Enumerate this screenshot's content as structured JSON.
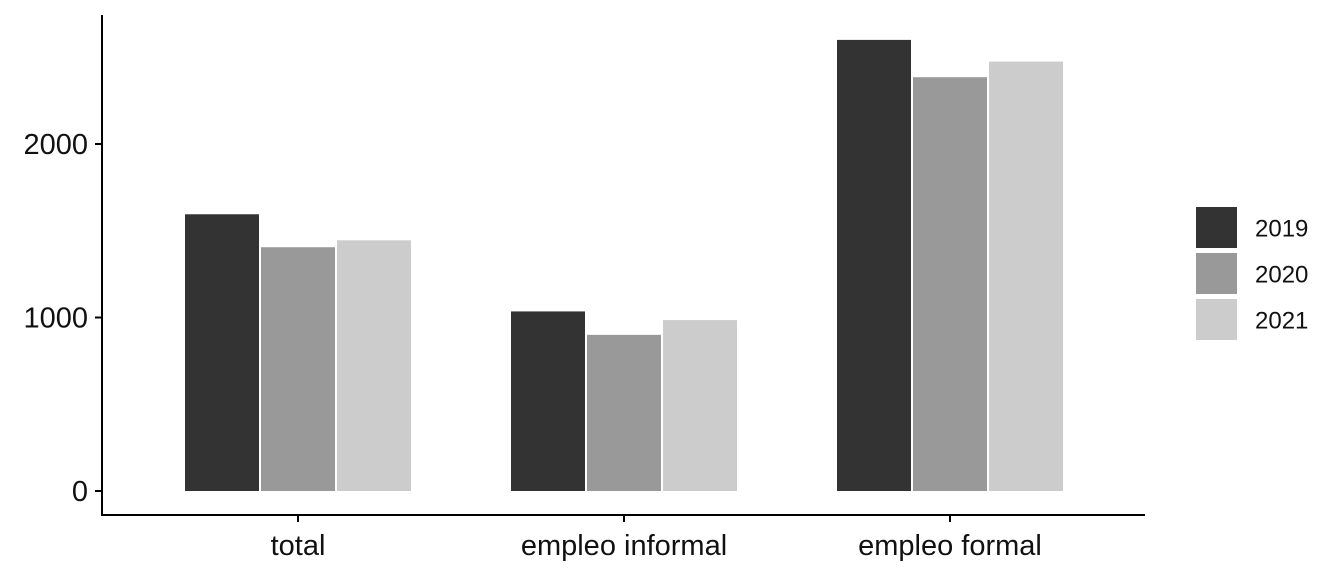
{
  "chart_data": {
    "type": "bar",
    "title": "",
    "xlabel": "",
    "ylabel": "",
    "categories": [
      "total",
      "empleo informal",
      "empleo formal"
    ],
    "series": [
      {
        "name": "2019",
        "color": "#333333",
        "values": [
          1595,
          1035,
          2600
        ]
      },
      {
        "name": "2020",
        "color": "#999999",
        "values": [
          1405,
          900,
          2385
        ]
      },
      {
        "name": "2021",
        "color": "#cccccc",
        "values": [
          1445,
          985,
          2475
        ]
      }
    ],
    "ylim": [
      0,
      2700
    ],
    "yticks": [
      0,
      1000,
      2000
    ],
    "ytick_labels": [
      "0",
      "1000",
      "2000"
    ],
    "grid": false,
    "legend_position": "right"
  }
}
